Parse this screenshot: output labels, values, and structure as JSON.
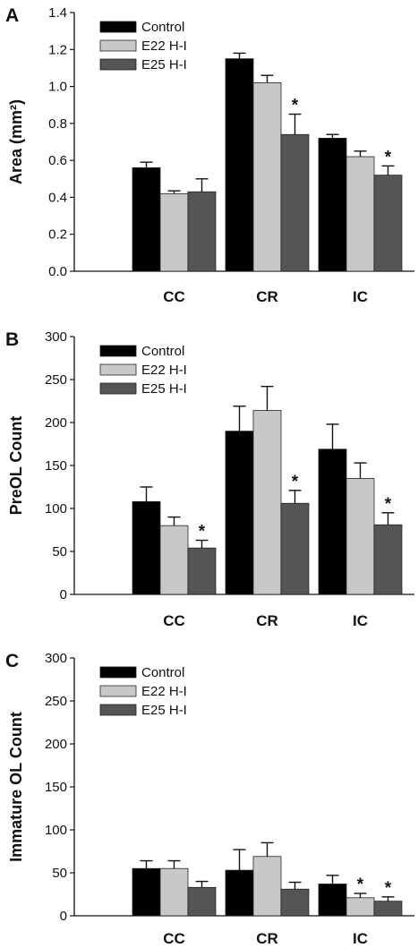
{
  "colors": {
    "Control": "#000000",
    "E22 H-I": "#c8c8c8",
    "E25 H-I": "#555555",
    "axis": "#111111"
  },
  "chart_data": [
    {
      "type": "bar",
      "panel": "A",
      "ylabel": "Area (mm²)",
      "ylim": [
        0,
        1.4
      ],
      "yticks": [
        "0.0",
        "0.2",
        "0.4",
        "0.6",
        "0.8",
        "1.0",
        "1.2",
        "1.4"
      ],
      "categories": [
        "CC",
        "CR",
        "IC"
      ],
      "legend": [
        "Control",
        "E22 H-I",
        "E25 H-I"
      ],
      "series": [
        {
          "name": "Control",
          "values": [
            0.56,
            1.15,
            0.72
          ],
          "errors": [
            0.03,
            0.03,
            0.02
          ],
          "significant": [
            false,
            false,
            false
          ]
        },
        {
          "name": "E22 H-I",
          "values": [
            0.42,
            1.02,
            0.62
          ],
          "errors": [
            0.015,
            0.04,
            0.03
          ],
          "significant": [
            false,
            false,
            false
          ]
        },
        {
          "name": "E25 H-I",
          "values": [
            0.43,
            0.74,
            0.52
          ],
          "errors": [
            0.07,
            0.11,
            0.05
          ],
          "significant": [
            false,
            true,
            true
          ]
        }
      ]
    },
    {
      "type": "bar",
      "panel": "B",
      "ylabel": "PreOL Count",
      "ylim": [
        0,
        300
      ],
      "yticks": [
        "0",
        "50",
        "100",
        "150",
        "200",
        "250",
        "300"
      ],
      "categories": [
        "CC",
        "CR",
        "IC"
      ],
      "legend": [
        "Control",
        "E22 H-I",
        "E25 H-I"
      ],
      "series": [
        {
          "name": "Control",
          "values": [
            108,
            190,
            169
          ],
          "errors": [
            17,
            29,
            29
          ],
          "significant": [
            false,
            false,
            false
          ]
        },
        {
          "name": "E22 H-I",
          "values": [
            80,
            214,
            135
          ],
          "errors": [
            10,
            28,
            18
          ],
          "significant": [
            false,
            false,
            false
          ]
        },
        {
          "name": "E25 H-I",
          "values": [
            54,
            106,
            81
          ],
          "errors": [
            9,
            15,
            14
          ],
          "significant": [
            true,
            true,
            true
          ]
        }
      ]
    },
    {
      "type": "bar",
      "panel": "C",
      "ylabel": "Immature OL Count",
      "ylim": [
        0,
        300
      ],
      "yticks": [
        "0",
        "50",
        "100",
        "150",
        "200",
        "250",
        "300"
      ],
      "categories": [
        "CC",
        "CR",
        "IC"
      ],
      "legend": [
        "Control",
        "E22 H-I",
        "E25 H-I"
      ],
      "series": [
        {
          "name": "Control",
          "values": [
            55,
            53,
            37
          ],
          "errors": [
            9,
            24,
            10
          ],
          "significant": [
            false,
            false,
            false
          ]
        },
        {
          "name": "E22 H-I",
          "values": [
            55,
            69,
            21
          ],
          "errors": [
            9,
            16,
            5
          ],
          "significant": [
            false,
            false,
            true
          ]
        },
        {
          "name": "E25 H-I",
          "values": [
            33,
            31,
            17
          ],
          "errors": [
            7,
            8,
            5
          ],
          "significant": [
            false,
            false,
            true
          ]
        }
      ]
    }
  ]
}
